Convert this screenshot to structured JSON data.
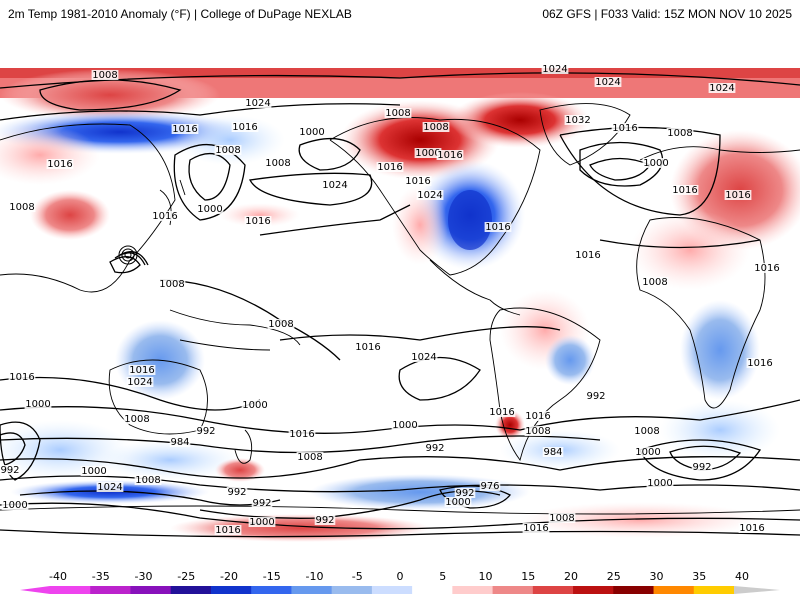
{
  "header": {
    "left": "2m Temp 1981-2010 Anomaly (°F) | College of DuPage NEXLAB",
    "right": "06Z GFS | F033 Valid: 15Z MON NOV 10 2025"
  },
  "colorbar": {
    "ticks": [
      "-40",
      "-35",
      "-30",
      "-25",
      "-20",
      "-15",
      "-10",
      "-5",
      "0",
      "5",
      "10",
      "15",
      "20",
      "25",
      "30",
      "35",
      "40"
    ],
    "colors": [
      "#ee44ee",
      "#bb22cc",
      "#8811bb",
      "#221199",
      "#1133cc",
      "#3366ee",
      "#6699ee",
      "#99bbee",
      "#ccddff",
      "#ffffff",
      "#ffcccc",
      "#ee8888",
      "#dd4444",
      "#bb1111",
      "#880000",
      "#ff8800",
      "#ffcc00"
    ]
  },
  "map": {
    "land_color": "#ffffff",
    "coast_color": "#000000",
    "isobar_labels": [
      {
        "text": "1008",
        "id": "a"
      },
      {
        "text": "1024",
        "id": "b"
      },
      {
        "text": "1016",
        "id": "c"
      },
      {
        "text": "1016",
        "id": "d"
      },
      {
        "text": "1016",
        "id": "e"
      },
      {
        "text": "1008",
        "id": "f"
      },
      {
        "text": "1000",
        "id": "g"
      },
      {
        "text": "1008",
        "id": "h"
      },
      {
        "text": "1000",
        "id": "i"
      },
      {
        "text": "1008",
        "id": "j"
      },
      {
        "text": "1024",
        "id": "k"
      },
      {
        "text": "1016",
        "id": "l"
      },
      {
        "text": "1016",
        "id": "m"
      },
      {
        "text": "1016",
        "id": "n"
      },
      {
        "text": "1000",
        "id": "o"
      },
      {
        "text": "1016",
        "id": "p"
      },
      {
        "text": "1008",
        "id": "q"
      },
      {
        "text": "1008",
        "id": "r"
      },
      {
        "text": "1016",
        "id": "s"
      },
      {
        "text": "1024",
        "id": "t"
      },
      {
        "text": "1032",
        "id": "u"
      },
      {
        "text": "1024",
        "id": "v"
      },
      {
        "text": "1024",
        "id": "w"
      },
      {
        "text": "1024",
        "id": "x"
      },
      {
        "text": "1016",
        "id": "y"
      },
      {
        "text": "1008",
        "id": "z"
      },
      {
        "text": "1000",
        "id": "aa"
      },
      {
        "text": "1016",
        "id": "ab"
      },
      {
        "text": "1016",
        "id": "ac"
      },
      {
        "text": "1016",
        "id": "ad"
      },
      {
        "text": "1008",
        "id": "ae"
      },
      {
        "text": "1016",
        "id": "af"
      },
      {
        "text": "1024",
        "id": "ag"
      },
      {
        "text": "1016",
        "id": "ah"
      },
      {
        "text": "1008",
        "id": "ai"
      },
      {
        "text": "1016",
        "id": "aj"
      },
      {
        "text": "1016",
        "id": "ak"
      },
      {
        "text": "1024",
        "id": "al"
      },
      {
        "text": "1000",
        "id": "am"
      },
      {
        "text": "1008",
        "id": "an"
      },
      {
        "text": "984",
        "id": "ao"
      },
      {
        "text": "992",
        "id": "ap"
      },
      {
        "text": "1000",
        "id": "aq"
      },
      {
        "text": "1016",
        "id": "ar"
      },
      {
        "text": "1008",
        "id": "as"
      },
      {
        "text": "1000",
        "id": "at"
      },
      {
        "text": "992",
        "id": "au"
      },
      {
        "text": "1016",
        "id": "av"
      },
      {
        "text": "1016",
        "id": "aw"
      },
      {
        "text": "1008",
        "id": "ax"
      },
      {
        "text": "992",
        "id": "ay"
      },
      {
        "text": "984",
        "id": "az"
      },
      {
        "text": "1000",
        "id": "ba"
      },
      {
        "text": "1008",
        "id": "bb"
      },
      {
        "text": "992",
        "id": "bc"
      },
      {
        "text": "1016",
        "id": "bd"
      },
      {
        "text": "992",
        "id": "be"
      },
      {
        "text": "1000",
        "id": "bf"
      },
      {
        "text": "1024",
        "id": "bg"
      },
      {
        "text": "1008",
        "id": "bh"
      },
      {
        "text": "992",
        "id": "bi"
      },
      {
        "text": "992",
        "id": "bj"
      },
      {
        "text": "1000",
        "id": "bk"
      },
      {
        "text": "992",
        "id": "bl"
      },
      {
        "text": "976",
        "id": "bm"
      },
      {
        "text": "992",
        "id": "bn"
      },
      {
        "text": "1000",
        "id": "bo"
      },
      {
        "text": "1000",
        "id": "bp"
      },
      {
        "text": "1008",
        "id": "bq"
      },
      {
        "text": "1016",
        "id": "br"
      },
      {
        "text": "1016",
        "id": "bs"
      },
      {
        "text": "1016",
        "id": "bt"
      },
      {
        "text": "1000",
        "id": "bu"
      },
      {
        "text": "1008",
        "id": "bv"
      },
      {
        "text": "1016",
        "id": "bw"
      }
    ]
  }
}
